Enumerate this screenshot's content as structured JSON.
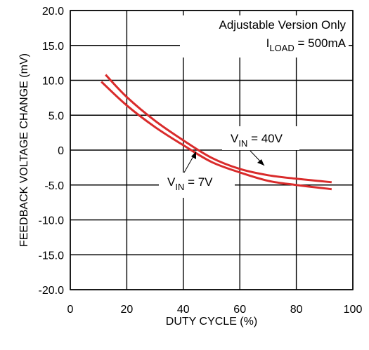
{
  "chart_data": {
    "type": "line",
    "xlabel": "DUTY CYCLE (%)",
    "ylabel": "FEEDBACK VOLTAGE CHANGE (mV)",
    "xlim": [
      0,
      100
    ],
    "ylim": [
      -20,
      20
    ],
    "x_ticks": [
      "0",
      "20",
      "40",
      "60",
      "80",
      "100"
    ],
    "y_ticks": [
      "20.0",
      "15.0",
      "10.0",
      "5.0",
      "0",
      "-5.0",
      "-10.0",
      "-15.0",
      "-20.0"
    ],
    "grid": true,
    "series": [
      {
        "name_main": "V",
        "name_sub": "IN",
        "name_rest": " = 40V",
        "color": "#d92b2b",
        "x": [
          12.5,
          20,
          30,
          40,
          50,
          60,
          70,
          80,
          92.5
        ],
        "y": [
          10.8,
          7.6,
          4.2,
          1.4,
          -1.1,
          -2.7,
          -3.6,
          -4.1,
          -4.6
        ]
      },
      {
        "name_main": "V",
        "name_sub": "IN",
        "name_rest": " = 7V",
        "color": "#d92b2b",
        "x": [
          11,
          20,
          30,
          40,
          50,
          60,
          70,
          80,
          92.5
        ],
        "y": [
          9.8,
          6.4,
          3.3,
          0.7,
          -1.7,
          -3.2,
          -4.4,
          -5.0,
          -5.6
        ]
      }
    ],
    "annotations": {
      "line1": "Adjustable Version Only",
      "line2_main": "I",
      "line2_sub": "LOAD",
      "line2_rest": " = 500mA"
    }
  }
}
